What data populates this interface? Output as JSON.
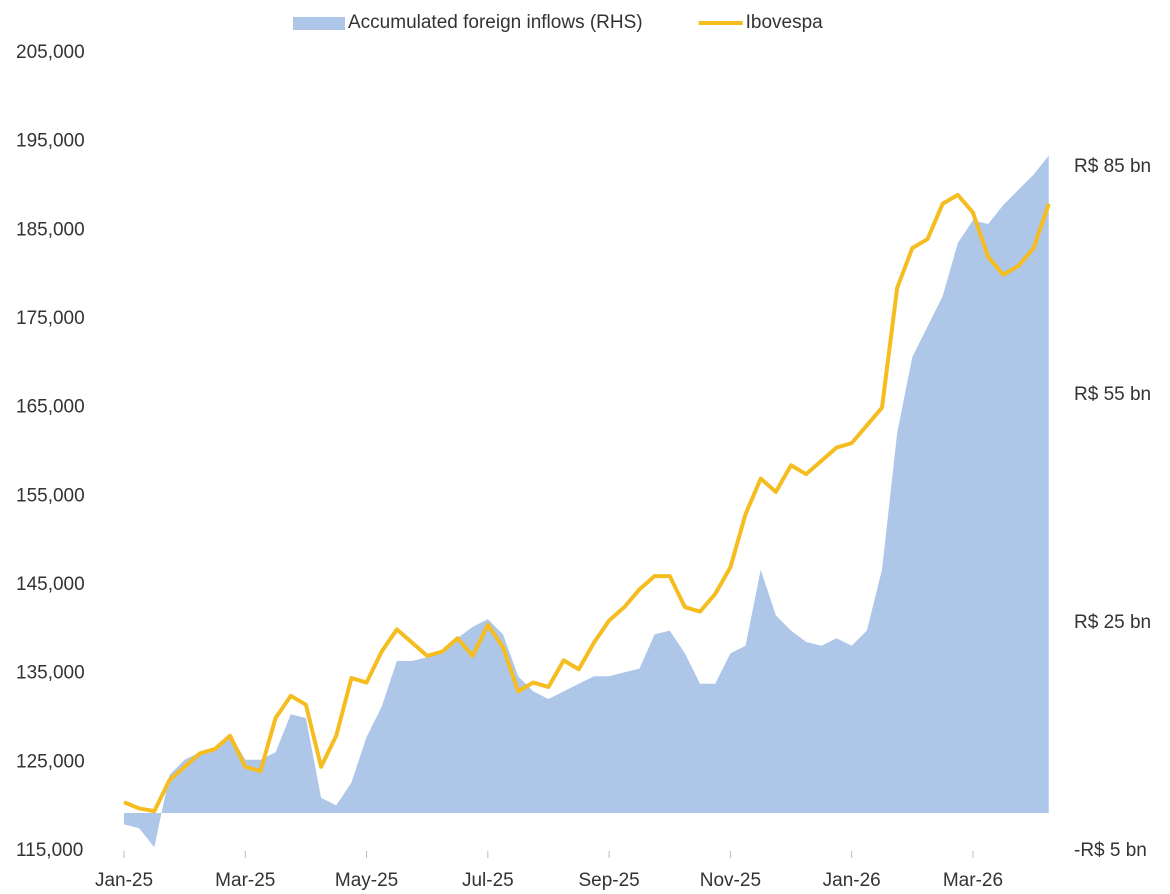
{
  "chart_data": {
    "type": "line",
    "categories": [
      "Jan-25",
      null,
      null,
      null,
      null,
      null,
      null,
      null,
      "Mar-25",
      null,
      null,
      null,
      null,
      null,
      null,
      null,
      "May-25",
      null,
      null,
      null,
      null,
      null,
      null,
      null,
      "Jul-25",
      null,
      null,
      null,
      null,
      null,
      null,
      null,
      "Sep-25",
      null,
      null,
      null,
      null,
      null,
      null,
      null,
      "Nov-25",
      null,
      null,
      null,
      null,
      null,
      null,
      null,
      "Jan-26",
      null,
      null,
      null,
      null,
      null,
      null,
      null,
      "Mar-26",
      null,
      null,
      null,
      null,
      null
    ],
    "series": [
      {
        "name": "Accumulated foreign inflows (RHS)",
        "type": "area",
        "axis": "y2",
        "color": "#aec6e8",
        "values": [
          -1.5,
          -2,
          -4.5,
          5,
          7,
          8,
          8.5,
          10.4,
          7,
          7,
          8,
          13,
          12.5,
          2,
          1,
          4,
          10,
          14,
          20,
          20,
          20.5,
          21,
          23,
          24.5,
          25.5,
          23.5,
          18,
          16,
          15,
          16,
          17,
          18,
          18,
          18.5,
          19,
          23.5,
          24,
          21,
          17,
          17,
          21,
          22,
          32,
          26,
          24,
          22.5,
          22,
          23,
          22,
          24,
          32,
          50,
          60,
          64,
          68,
          75,
          78,
          77.5,
          80,
          82,
          84,
          86.5
        ]
      },
      {
        "name": "Ibovespa",
        "type": "line",
        "color": "#f5bd1f",
        "values": [
          120500,
          119800,
          119500,
          123000,
          124500,
          126000,
          126500,
          128000,
          124500,
          124000,
          130000,
          132500,
          131500,
          124500,
          128000,
          134500,
          134000,
          137500,
          140000,
          138500,
          137000,
          137500,
          139000,
          137000,
          140500,
          138000,
          133000,
          134000,
          133500,
          136500,
          135500,
          138500,
          141000,
          142500,
          144500,
          146000,
          146000,
          142500,
          142000,
          144000,
          147000,
          153000,
          157000,
          155500,
          158500,
          157500,
          159000,
          160500,
          161000,
          163000,
          165000,
          178500,
          183000,
          184000,
          188000,
          189000,
          187000,
          182000,
          180000,
          181000,
          183000,
          188000
        ]
      }
    ],
    "ylim": [
      115000,
      205000
    ],
    "yticks": [
      {
        "value": 115000,
        "label": "115,000"
      },
      {
        "value": 125000,
        "label": "125,000"
      },
      {
        "value": 135000,
        "label": "135,000"
      },
      {
        "value": 145000,
        "label": "145,000"
      },
      {
        "value": 155000,
        "label": "155,000"
      },
      {
        "value": 165000,
        "label": "165,000"
      },
      {
        "value": 175000,
        "label": "175,000"
      },
      {
        "value": 185000,
        "label": "185,000"
      },
      {
        "value": 195000,
        "label": "195,000"
      },
      {
        "value": 205000,
        "label": "205,000"
      }
    ],
    "y2lim": [
      -5,
      100
    ],
    "y2ticks": [
      {
        "value": -5,
        "label": "-R$ 5 bn"
      },
      {
        "value": 25,
        "label": "R$ 25 bn"
      },
      {
        "value": 55,
        "label": "R$ 55 bn"
      },
      {
        "value": 85,
        "label": "R$ 85 bn"
      }
    ],
    "legend": "top"
  }
}
